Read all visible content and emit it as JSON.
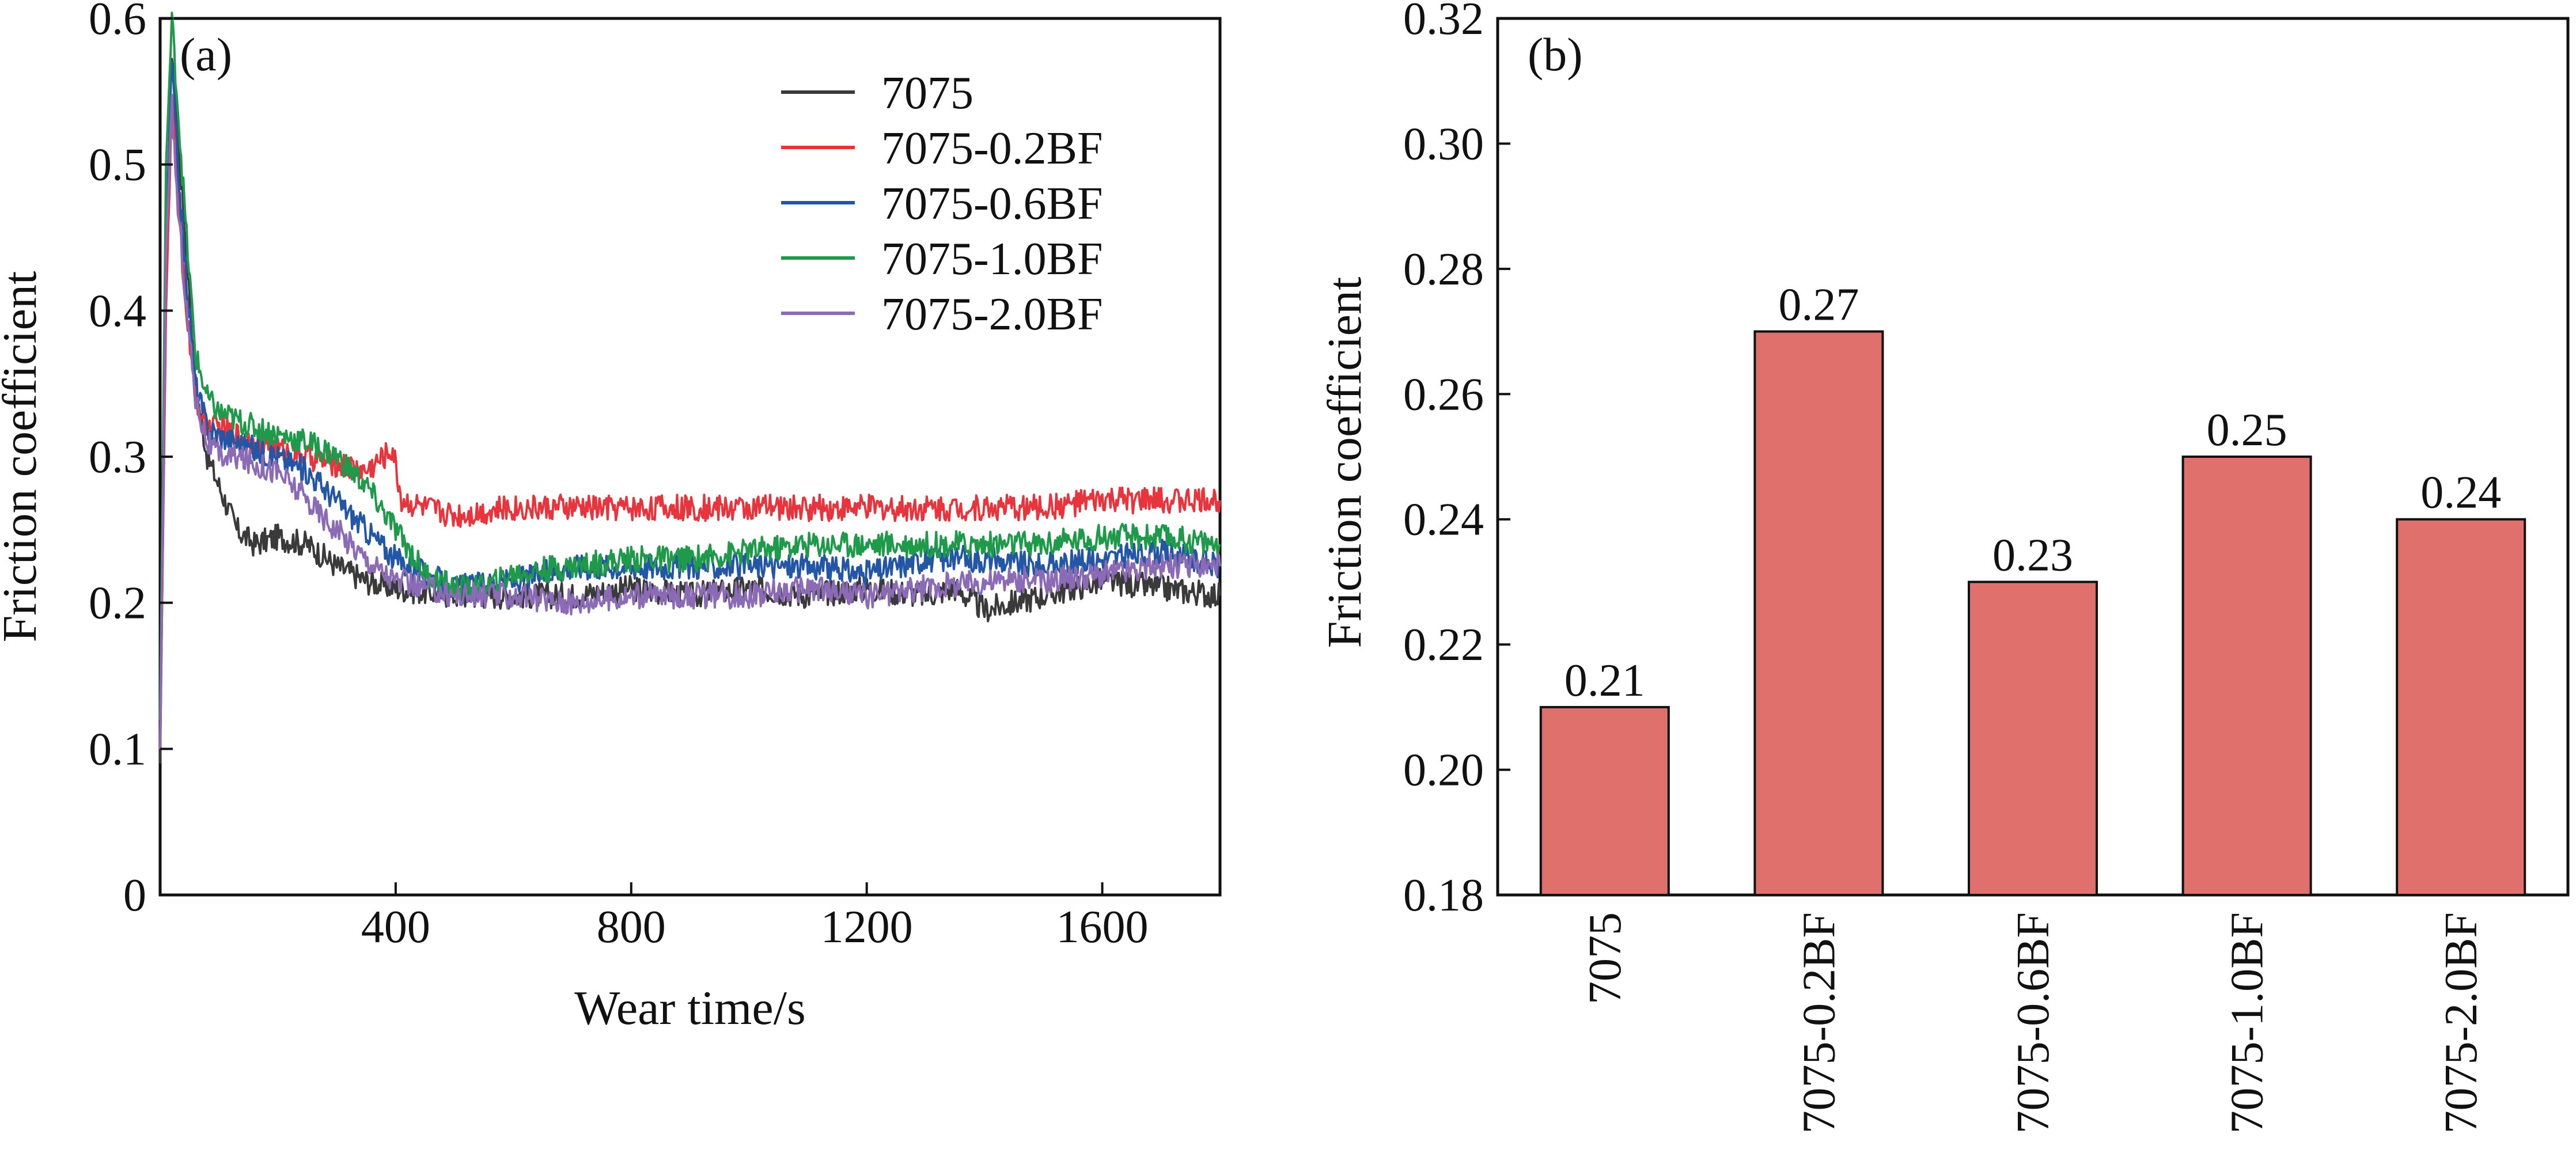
{
  "chart_data": [
    {
      "type": "line",
      "panel_label": "(a)",
      "xlabel": "Wear time/s",
      "ylabel": "Friction coefficient",
      "xlim": [
        0,
        1800
      ],
      "ylim": [
        0,
        0.6
      ],
      "xticks": [
        400,
        800,
        1200,
        1600
      ],
      "xtick_labels": [
        "400",
        "800",
        "1200",
        "1600"
      ],
      "yticks": [
        0,
        0.1,
        0.2,
        0.3,
        0.4,
        0.5,
        0.6
      ],
      "ytick_labels": [
        "0",
        "0.1",
        "0.2",
        "0.3",
        "0.4",
        "0.5",
        "0.6"
      ],
      "grid": false,
      "legend_position": "top-right",
      "series": [
        {
          "name": "7075",
          "color": "#3a3a3a",
          "x": [
            0,
            10,
            20,
            30,
            45,
            60,
            80,
            100,
            130,
            160,
            200,
            250,
            300,
            350,
            400,
            500,
            600,
            700,
            800,
            900,
            1000,
            1100,
            1200,
            1300,
            1350,
            1400,
            1500,
            1600,
            1700,
            1800
          ],
          "y": [
            0.09,
            0.42,
            0.58,
            0.52,
            0.44,
            0.35,
            0.3,
            0.28,
            0.25,
            0.24,
            0.245,
            0.24,
            0.225,
            0.215,
            0.21,
            0.205,
            0.205,
            0.205,
            0.21,
            0.205,
            0.21,
            0.205,
            0.21,
            0.205,
            0.21,
            0.195,
            0.205,
            0.215,
            0.21,
            0.205
          ]
        },
        {
          "name": "7075-0.2BF",
          "color": "#e8343c",
          "x": [
            0,
            10,
            20,
            30,
            45,
            60,
            80,
            100,
            130,
            160,
            200,
            250,
            300,
            350,
            395,
            410,
            450,
            500,
            600,
            700,
            800,
            900,
            1000,
            1100,
            1200,
            1300,
            1400,
            1500,
            1600,
            1700,
            1800
          ],
          "y": [
            0.1,
            0.4,
            0.55,
            0.48,
            0.4,
            0.34,
            0.32,
            0.32,
            0.315,
            0.31,
            0.305,
            0.3,
            0.295,
            0.29,
            0.305,
            0.27,
            0.265,
            0.26,
            0.265,
            0.265,
            0.265,
            0.265,
            0.265,
            0.265,
            0.265,
            0.265,
            0.265,
            0.265,
            0.27,
            0.27,
            0.27
          ]
        },
        {
          "name": "7075-0.6BF",
          "color": "#2456a6",
          "x": [
            0,
            10,
            20,
            30,
            45,
            60,
            80,
            100,
            130,
            160,
            200,
            250,
            300,
            350,
            400,
            450,
            500,
            600,
            700,
            800,
            900,
            1000,
            1100,
            1200,
            1300,
            1400,
            1500,
            1600,
            1700,
            1800
          ],
          "y": [
            0.1,
            0.45,
            0.57,
            0.5,
            0.42,
            0.35,
            0.32,
            0.315,
            0.31,
            0.305,
            0.3,
            0.29,
            0.27,
            0.25,
            0.23,
            0.22,
            0.21,
            0.215,
            0.225,
            0.225,
            0.225,
            0.225,
            0.225,
            0.22,
            0.23,
            0.23,
            0.225,
            0.23,
            0.235,
            0.225
          ]
        },
        {
          "name": "7075-1.0BF",
          "color": "#1f9a4a",
          "x": [
            0,
            10,
            20,
            30,
            45,
            60,
            80,
            100,
            130,
            160,
            200,
            250,
            300,
            350,
            400,
            450,
            500,
            550,
            600,
            700,
            800,
            900,
            1000,
            1100,
            1200,
            1300,
            1400,
            1500,
            1600,
            1700,
            1800
          ],
          "y": [
            0.12,
            0.5,
            0.6,
            0.54,
            0.45,
            0.37,
            0.34,
            0.33,
            0.325,
            0.32,
            0.315,
            0.31,
            0.3,
            0.28,
            0.25,
            0.22,
            0.21,
            0.21,
            0.22,
            0.225,
            0.23,
            0.23,
            0.235,
            0.24,
            0.24,
            0.24,
            0.24,
            0.24,
            0.245,
            0.245,
            0.24
          ]
        },
        {
          "name": "7075-2.0BF",
          "color": "#8b6bb5",
          "x": [
            0,
            10,
            20,
            30,
            45,
            60,
            80,
            100,
            130,
            160,
            200,
            250,
            300,
            350,
            400,
            500,
            600,
            700,
            800,
            900,
            1000,
            1100,
            1200,
            1300,
            1400,
            1500,
            1600,
            1700,
            1800
          ],
          "y": [
            0.1,
            0.44,
            0.54,
            0.47,
            0.4,
            0.34,
            0.31,
            0.3,
            0.3,
            0.295,
            0.29,
            0.27,
            0.25,
            0.23,
            0.215,
            0.205,
            0.205,
            0.2,
            0.205,
            0.205,
            0.205,
            0.21,
            0.205,
            0.21,
            0.215,
            0.215,
            0.22,
            0.225,
            0.225
          ]
        }
      ]
    },
    {
      "type": "bar",
      "panel_label": "(b)",
      "ylabel": "Friction coefficient",
      "categories": [
        "7075",
        "7075-0.2BF",
        "7075-0.6BF",
        "7075-1.0BF",
        "7075-2.0BF"
      ],
      "values": [
        0.21,
        0.27,
        0.23,
        0.25,
        0.24
      ],
      "value_labels": [
        "0.21",
        "0.27",
        "0.23",
        "0.25",
        "0.24"
      ],
      "ylim": [
        0.18,
        0.32
      ],
      "yticks": [
        0.18,
        0.2,
        0.22,
        0.24,
        0.26,
        0.28,
        0.3,
        0.32
      ],
      "ytick_labels": [
        "0.18",
        "0.20",
        "0.22",
        "0.24",
        "0.26",
        "0.28",
        "0.30",
        "0.32"
      ],
      "grid": false,
      "bar_color": "#e0706b"
    }
  ]
}
